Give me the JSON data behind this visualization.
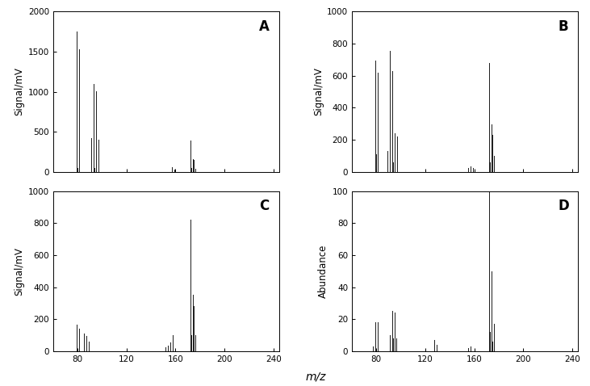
{
  "panels": [
    "A",
    "B",
    "C",
    "D"
  ],
  "xlim": [
    60,
    245
  ],
  "xticks": [
    80,
    120,
    160,
    200,
    240
  ],
  "A": {
    "ylabel": "Signal/mV",
    "ylim": [
      0,
      2000
    ],
    "yticks": [
      0,
      500,
      1000,
      1500,
      2000
    ],
    "peaks": [
      [
        79,
        1750
      ],
      [
        80,
        50
      ],
      [
        81,
        1530
      ],
      [
        91,
        420
      ],
      [
        93,
        1100
      ],
      [
        94,
        50
      ],
      [
        95,
        1010
      ],
      [
        97,
        400
      ],
      [
        157,
        60
      ],
      [
        159,
        30
      ],
      [
        172,
        390
      ],
      [
        173,
        50
      ],
      [
        174,
        155
      ],
      [
        175,
        145
      ],
      [
        176,
        40
      ]
    ]
  },
  "B": {
    "ylabel": "Signal/mV",
    "ylim": [
      0,
      1000
    ],
    "yticks": [
      0,
      200,
      400,
      600,
      800,
      1000
    ],
    "peaks": [
      [
        79,
        695
      ],
      [
        80,
        110
      ],
      [
        81,
        620
      ],
      [
        89,
        130
      ],
      [
        91,
        755
      ],
      [
        93,
        630
      ],
      [
        94,
        60
      ],
      [
        95,
        240
      ],
      [
        97,
        220
      ],
      [
        155,
        25
      ],
      [
        157,
        35
      ],
      [
        159,
        22
      ],
      [
        172,
        680
      ],
      [
        173,
        60
      ],
      [
        174,
        295
      ],
      [
        175,
        230
      ],
      [
        176,
        100
      ]
    ]
  },
  "C": {
    "ylabel": "Signal/mV",
    "ylim": [
      0,
      1000
    ],
    "yticks": [
      0,
      200,
      400,
      600,
      800,
      1000
    ],
    "peaks": [
      [
        79,
        168
      ],
      [
        81,
        140
      ],
      [
        85,
        110
      ],
      [
        87,
        95
      ],
      [
        89,
        60
      ],
      [
        152,
        25
      ],
      [
        154,
        35
      ],
      [
        156,
        55
      ],
      [
        158,
        100
      ],
      [
        172,
        820
      ],
      [
        173,
        100
      ],
      [
        174,
        355
      ],
      [
        175,
        280
      ],
      [
        176,
        100
      ]
    ]
  },
  "D": {
    "ylabel": "Abundance",
    "ylim": [
      0,
      100
    ],
    "yticks": [
      0,
      20,
      40,
      60,
      80,
      100
    ],
    "peaks": [
      [
        77,
        3
      ],
      [
        79,
        18
      ],
      [
        81,
        18
      ],
      [
        91,
        10
      ],
      [
        93,
        25
      ],
      [
        94,
        8
      ],
      [
        95,
        24
      ],
      [
        96,
        8
      ],
      [
        127,
        7
      ],
      [
        129,
        4
      ],
      [
        155,
        2
      ],
      [
        157,
        3
      ],
      [
        172,
        100
      ],
      [
        173,
        12
      ],
      [
        174,
        50
      ],
      [
        175,
        6
      ],
      [
        176,
        17
      ]
    ]
  },
  "xlabel": "m/z",
  "line_color": "#1a1a1a",
  "background_color": "#ffffff",
  "panel_label_fontsize": 12
}
